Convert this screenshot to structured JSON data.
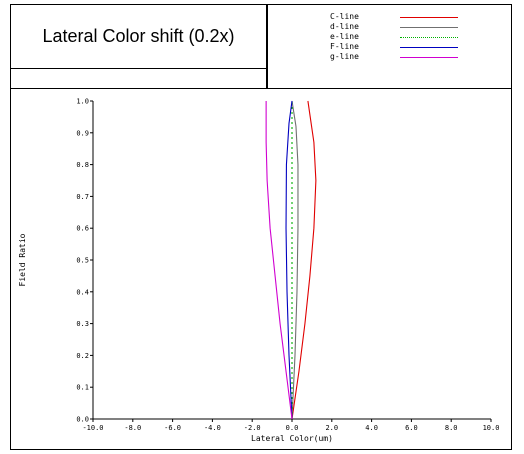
{
  "chart_data": {
    "type": "line",
    "title": "Lateral Color shift (0.2x)",
    "xlabel": "Lateral Color(um)",
    "ylabel": "Field Ratio",
    "xlim": [
      -10.0,
      10.0
    ],
    "ylim": [
      0.0,
      1.0
    ],
    "x_ticks": [
      "-10.0",
      "-8.0",
      "-6.0",
      "-4.0",
      "-2.0",
      "0.0",
      "2.0",
      "4.0",
      "6.0",
      "8.0",
      "10.0"
    ],
    "y_ticks": [
      "0.0",
      "0.1",
      "0.2",
      "0.3",
      "0.4",
      "0.5",
      "0.6",
      "0.7",
      "0.8",
      "0.9",
      "1.0"
    ],
    "legend_placement": "top-right",
    "grid": false,
    "series": [
      {
        "name": "C-line",
        "color": "#e00000",
        "dash": "solid",
        "points": [
          [
            0.0,
            0.0
          ],
          [
            0.35,
            0.15
          ],
          [
            0.65,
            0.3
          ],
          [
            0.9,
            0.45
          ],
          [
            1.1,
            0.6
          ],
          [
            1.2,
            0.75
          ],
          [
            1.1,
            0.87
          ],
          [
            0.8,
            1.0
          ]
        ]
      },
      {
        "name": "d-line",
        "color": "#707070",
        "dash": "solid",
        "points": [
          [
            0.0,
            0.0
          ],
          [
            0.15,
            0.2
          ],
          [
            0.25,
            0.4
          ],
          [
            0.3,
            0.6
          ],
          [
            0.3,
            0.8
          ],
          [
            0.2,
            0.92
          ],
          [
            0.0,
            1.0
          ]
        ]
      },
      {
        "name": "e-line",
        "color": "#00b000",
        "dash": "dotted",
        "points": [
          [
            0.0,
            0.0
          ],
          [
            0.0,
            0.25
          ],
          [
            0.0,
            0.5
          ],
          [
            0.0,
            0.75
          ],
          [
            0.0,
            1.0
          ]
        ]
      },
      {
        "name": "F-line",
        "color": "#0000c0",
        "dash": "solid",
        "points": [
          [
            0.0,
            0.0
          ],
          [
            -0.15,
            0.2
          ],
          [
            -0.25,
            0.4
          ],
          [
            -0.3,
            0.6
          ],
          [
            -0.28,
            0.8
          ],
          [
            -0.15,
            0.93
          ],
          [
            0.0,
            1.0
          ]
        ]
      },
      {
        "name": "g-line",
        "color": "#d000d0",
        "dash": "solid",
        "points": [
          [
            0.0,
            0.0
          ],
          [
            -0.3,
            0.15
          ],
          [
            -0.6,
            0.3
          ],
          [
            -0.85,
            0.45
          ],
          [
            -1.1,
            0.6
          ],
          [
            -1.25,
            0.75
          ],
          [
            -1.3,
            0.87
          ],
          [
            -1.3,
            1.0
          ]
        ]
      }
    ]
  }
}
